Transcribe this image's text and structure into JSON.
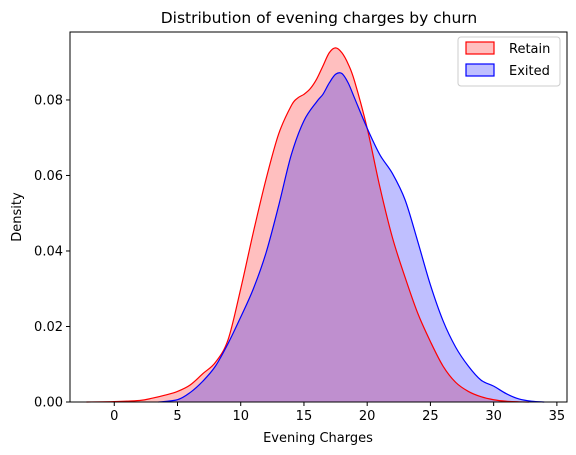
{
  "chart_data": {
    "type": "area",
    "title": "Distribution of evening charges by churn",
    "xlabel": "Evening Charges",
    "ylabel": "Density",
    "xlim": [
      -3.5,
      35.8
    ],
    "ylim": [
      0,
      0.098
    ],
    "xticks": [
      0,
      5,
      10,
      15,
      20,
      25,
      30,
      35
    ],
    "yticks": [
      0.0,
      0.02,
      0.04,
      0.06,
      0.08
    ],
    "ytick_labels": [
      "0.00",
      "0.02",
      "0.04",
      "0.06",
      "0.08"
    ],
    "grid": false,
    "legend": {
      "position": "top-right"
    },
    "series": [
      {
        "name": "Retain",
        "line_color": "#ff0000",
        "fill_color": "#ff0000",
        "fill_opacity": 0.25,
        "x": [
          -2.2,
          0,
          2,
          3,
          4,
          5,
          6,
          7,
          8,
          9,
          10,
          11,
          12,
          13,
          14,
          14.5,
          15,
          15.5,
          16,
          16.5,
          17,
          17.5,
          18,
          18.5,
          19,
          20,
          21,
          22,
          23,
          24,
          25,
          26,
          27,
          28,
          29,
          30,
          31,
          32,
          32.8
        ],
        "y": [
          0,
          0.0001,
          0.0004,
          0.001,
          0.0018,
          0.0028,
          0.0045,
          0.0075,
          0.0105,
          0.0165,
          0.03,
          0.045,
          0.059,
          0.071,
          0.0785,
          0.0805,
          0.0815,
          0.083,
          0.0855,
          0.089,
          0.0925,
          0.0938,
          0.0925,
          0.0895,
          0.085,
          0.0725,
          0.057,
          0.0435,
          0.033,
          0.0235,
          0.016,
          0.0095,
          0.0052,
          0.0028,
          0.0014,
          0.0006,
          0.0002,
          5e-05,
          0
        ]
      },
      {
        "name": "Exited",
        "line_color": "#0000ff",
        "fill_color": "#0000ff",
        "fill_opacity": 0.25,
        "x": [
          3.5,
          5,
          6,
          7,
          8,
          9,
          10,
          11,
          12,
          13,
          14,
          15,
          16,
          16.5,
          17,
          17.5,
          18,
          18.5,
          19,
          20,
          21,
          22,
          23,
          24,
          25,
          26,
          27,
          28,
          29,
          30,
          31,
          32,
          33,
          34
        ],
        "y": [
          0,
          0.0006,
          0.0025,
          0.0055,
          0.0095,
          0.0155,
          0.0225,
          0.03,
          0.0395,
          0.052,
          0.0655,
          0.0745,
          0.0795,
          0.0815,
          0.0845,
          0.0868,
          0.087,
          0.0845,
          0.0805,
          0.0725,
          0.0655,
          0.0605,
          0.0535,
          0.0425,
          0.031,
          0.0215,
          0.0145,
          0.0095,
          0.0058,
          0.0042,
          0.0022,
          0.0008,
          0.0002,
          0
        ]
      }
    ]
  }
}
